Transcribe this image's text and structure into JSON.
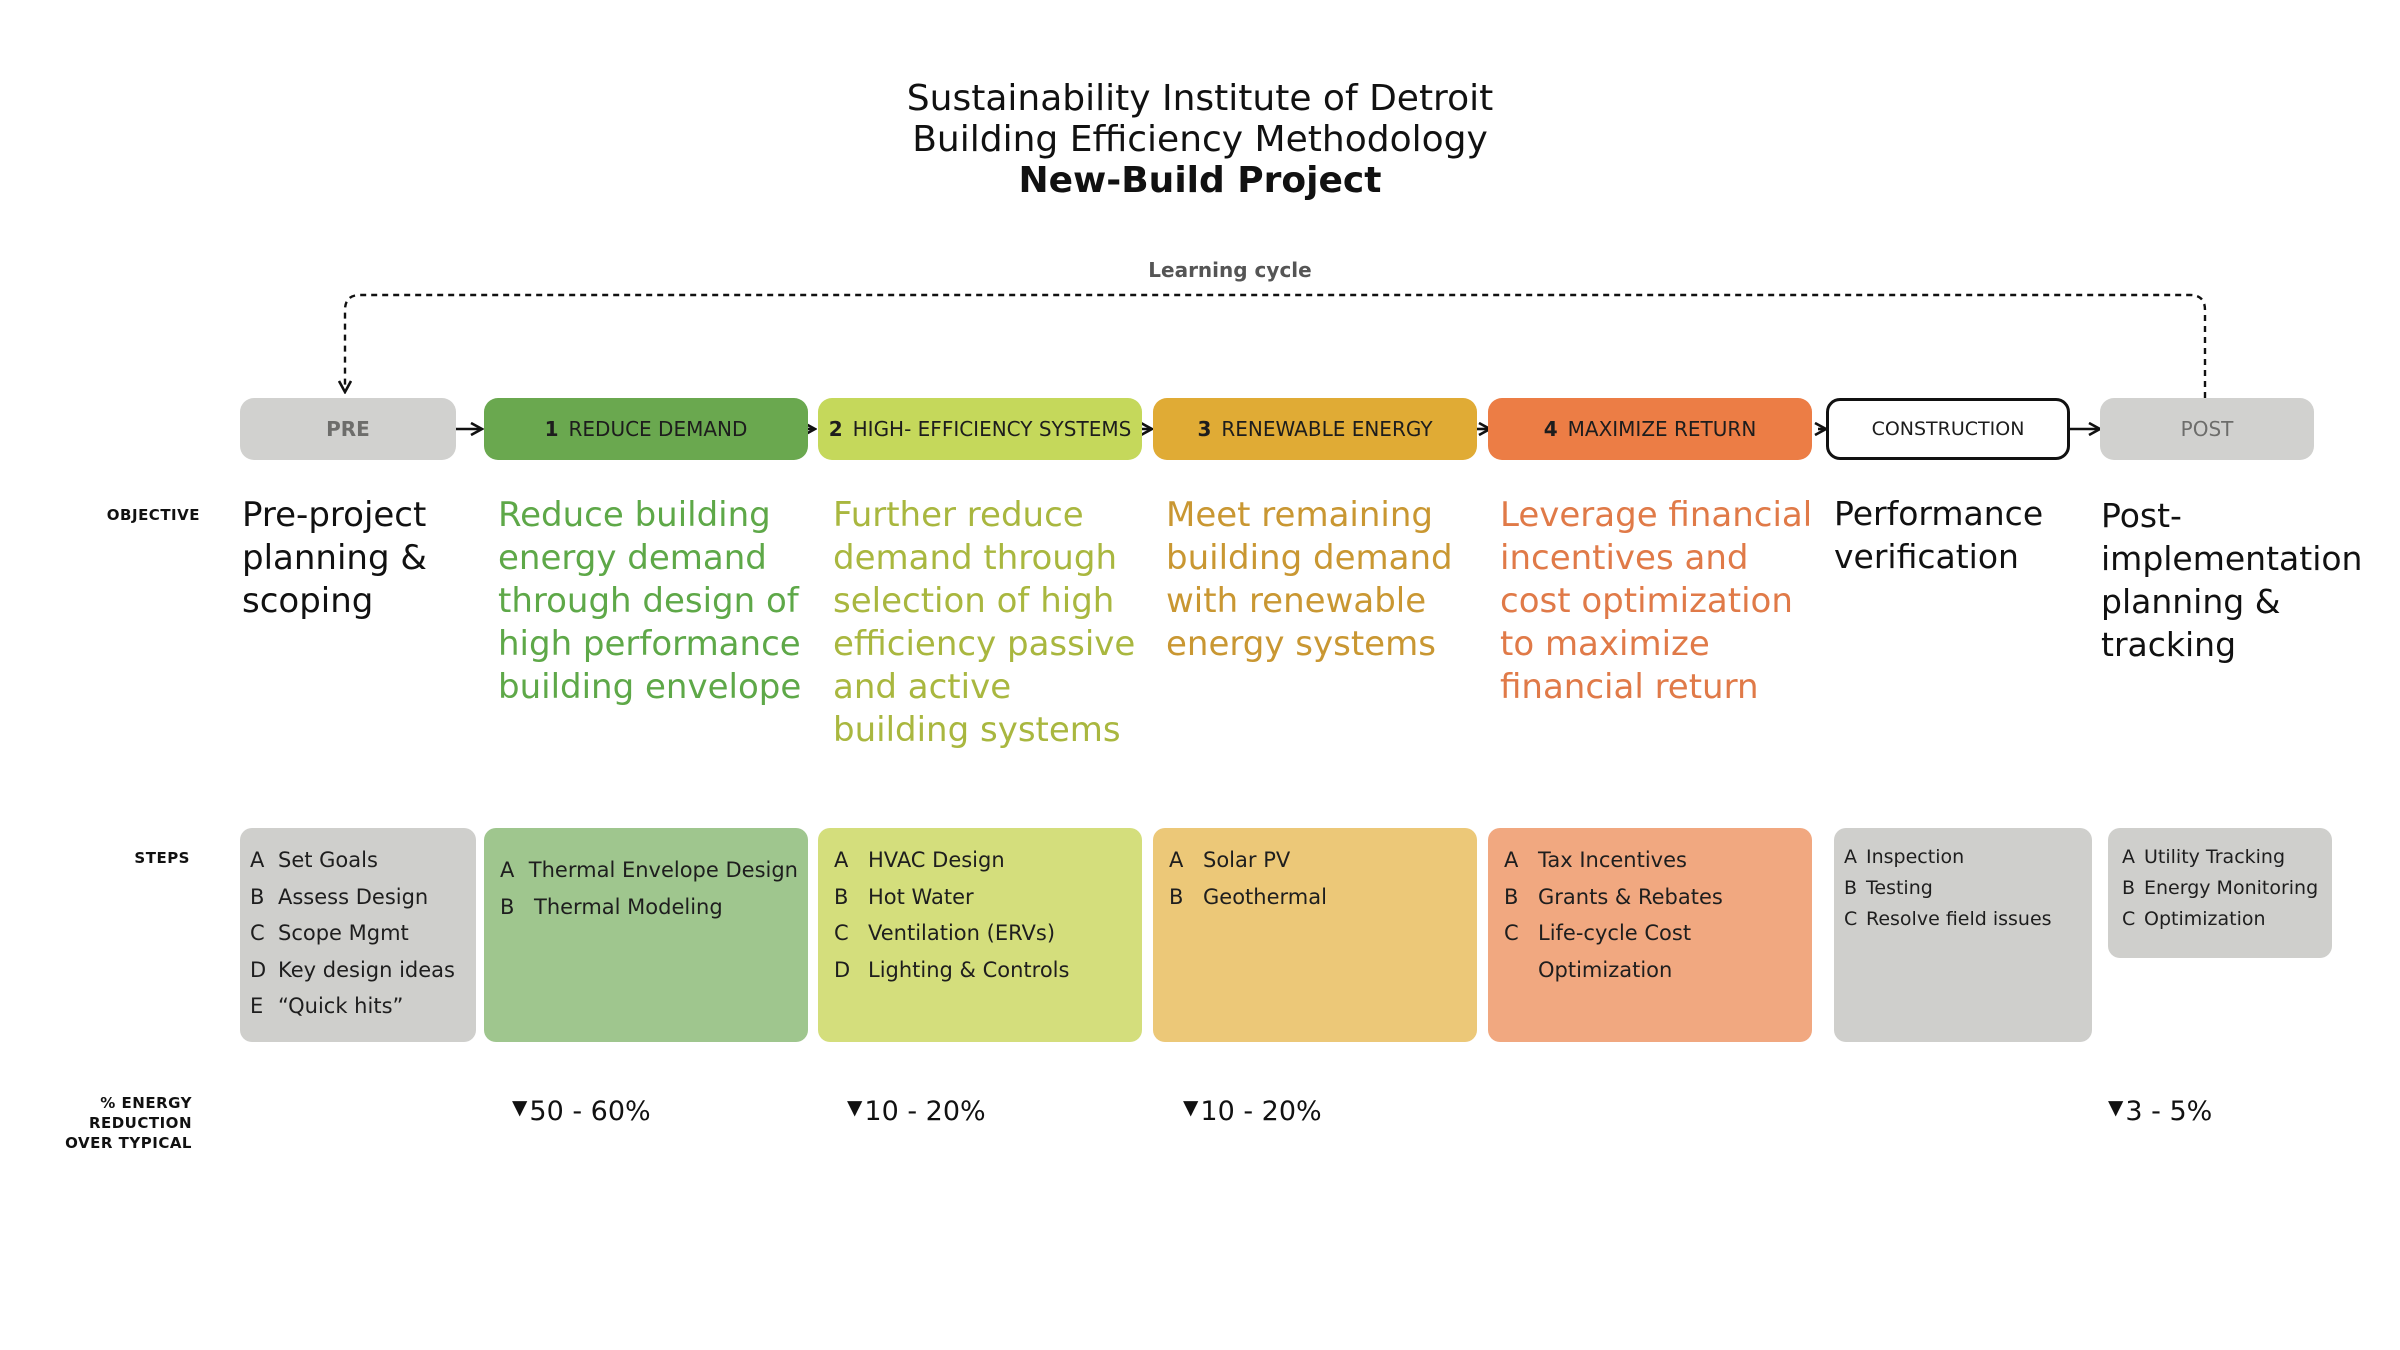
{
  "title": {
    "line1": "Sustainability Institute of Detroit",
    "line2": "Building Efficiency Methodology",
    "line3": "New-Build Project"
  },
  "cycle_label": "Learning cycle",
  "row_labels": {
    "objective": "OBJECTIVE",
    "steps": "STEPS",
    "energy_line1": "% ENERGY",
    "energy_line2": "REDUCTION",
    "energy_line3": "OVER TYPICAL"
  },
  "colors": {
    "green": "#6aa84f",
    "lime": "#c5d85b",
    "gold": "#e0ab35",
    "orange": "#ec7d45",
    "grey": "#d1d1cf",
    "green_text": "#5ea848",
    "lime_text": "#a9b73f",
    "gold_text": "#c99732",
    "orange_text": "#e07a48"
  },
  "phases": [
    {
      "id": "pre",
      "num": "",
      "label": "PRE"
    },
    {
      "id": "reduce",
      "num": "1",
      "label": "REDUCE DEMAND"
    },
    {
      "id": "systems",
      "num": "2",
      "label": "HIGH- EFFICIENCY SYSTEMS"
    },
    {
      "id": "renewable",
      "num": "3",
      "label": "RENEWABLE ENERGY"
    },
    {
      "id": "return",
      "num": "4",
      "label": "MAXIMIZE RETURN"
    },
    {
      "id": "construction",
      "num": "",
      "label": "CONSTRUCTION"
    },
    {
      "id": "post",
      "num": "",
      "label": "POST"
    }
  ],
  "objectives": [
    [
      "Pre-project",
      "planning &",
      "scoping"
    ],
    [
      "Reduce building",
      "energy demand",
      "through design of",
      "high performance",
      "building envelope"
    ],
    [
      "Further reduce",
      "demand through",
      "selection of high",
      "efficiency passive",
      "and active",
      "building systems"
    ],
    [
      "Meet remaining",
      "building demand",
      "with renewable",
      "energy systems"
    ],
    [
      "Leverage financial",
      "incentives and",
      "cost optimization",
      "to maximize",
      "financial return"
    ],
    [
      "Performance",
      "verification"
    ],
    [
      "Post-",
      "implementation",
      "planning &",
      "tracking"
    ]
  ],
  "steps": [
    [
      {
        "letter": "A",
        "text": "Set Goals"
      },
      {
        "letter": "B",
        "text": "Assess Design"
      },
      {
        "letter": "C",
        "text": "Scope Mgmt"
      },
      {
        "letter": "D",
        "text": "Key design ideas"
      },
      {
        "letter": "E",
        "text": "“Quick hits”"
      }
    ],
    [
      {
        "letter": "A",
        "text": "Thermal Envelope Design"
      },
      {
        "letter": "B",
        "text": "Thermal Modeling"
      }
    ],
    [
      {
        "letter": "A",
        "text": "HVAC Design"
      },
      {
        "letter": "B",
        "text": "Hot Water"
      },
      {
        "letter": "C",
        "text": "Ventilation (ERVs)"
      },
      {
        "letter": "D",
        "text": "Lighting & Controls"
      }
    ],
    [
      {
        "letter": "A",
        "text": "Solar PV"
      },
      {
        "letter": "B",
        "text": "Geothermal"
      }
    ],
    [
      {
        "letter": "A",
        "text": "Tax Incentives"
      },
      {
        "letter": "B",
        "text": "Grants & Rebates"
      },
      {
        "letter": "C",
        "text": "Life-cycle Cost"
      },
      {
        "letter": "",
        "text": "Optimization"
      }
    ],
    [
      {
        "letter": "A",
        "text": "Inspection"
      },
      {
        "letter": "B",
        "text": "Testing"
      },
      {
        "letter": "C",
        "text": "Resolve field issues"
      }
    ],
    [
      {
        "letter": "A",
        "text": "Utility Tracking"
      },
      {
        "letter": "B",
        "text": "Energy Monitoring"
      },
      {
        "letter": "C",
        "text": "Optimization"
      }
    ]
  ],
  "reductions": {
    "reduce": "50 - 60%",
    "systems": "10 - 20%",
    "renewable": "10 - 20%",
    "post": "3 - 5%",
    "marker": "▼"
  }
}
